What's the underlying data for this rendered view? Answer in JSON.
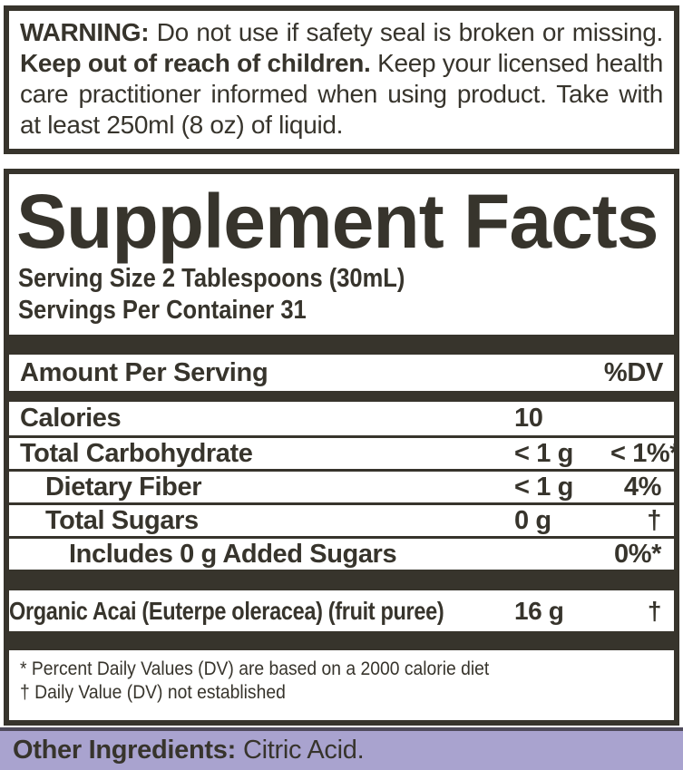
{
  "colors": {
    "ink": "#37342c",
    "background": "#ffffff",
    "other_ingredients_bg": "#a9a3cf",
    "other_ingredients_border": "#4f4b5c"
  },
  "warning": {
    "bold1": "WARNING:",
    "text1": "Do not use if safety seal is broken or missing.",
    "bold2": "Keep out of reach of children.",
    "text2": "Keep your licensed health care practitioner informed when using product. Take with at least 250ml (8 oz) of liquid."
  },
  "supplement_facts": {
    "title": "Supplement Facts",
    "serving_size": "Serving Size 2 Tablespoons (30mL)",
    "servings_per_container": "Servings Per Container 31",
    "header": {
      "left": "Amount Per Serving",
      "right": "%DV"
    },
    "rows": [
      {
        "name": "Calories",
        "amount": "10",
        "dv": "",
        "indent": 0
      },
      {
        "name": "Total Carbohydrate",
        "amount": "< 1 g",
        "dv": "< 1%*",
        "indent": 0
      },
      {
        "name": "Dietary Fiber",
        "amount": "< 1 g",
        "dv": "4%",
        "indent": 1
      },
      {
        "name": "Total Sugars",
        "amount": "0 g",
        "dv": "†",
        "indent": 1
      },
      {
        "name": "Includes 0 g Added Sugars",
        "amount": "",
        "dv": "0%*",
        "indent": 2
      }
    ],
    "ingredient_row": {
      "name": "Organic Acai (Euterpe oleracea) (fruit puree)",
      "amount": "16 g",
      "dv": "†"
    },
    "footnotes": [
      "* Percent Daily Values (DV) are based on a 2000 calorie diet",
      "† Daily Value (DV) not established"
    ]
  },
  "other_ingredients": {
    "label": "Other Ingredients:",
    "value": "Citric Acid."
  }
}
